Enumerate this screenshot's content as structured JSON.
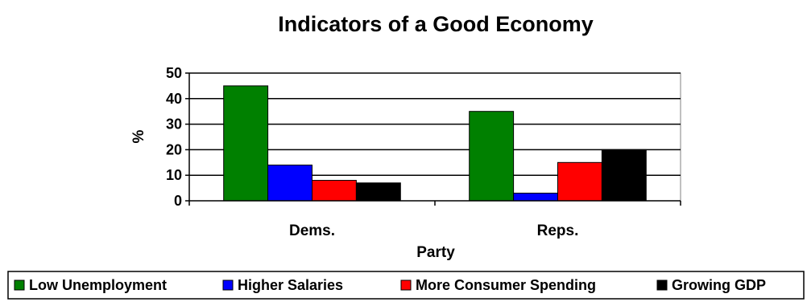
{
  "chart_data": {
    "type": "bar",
    "title": "Indicators of a Good Economy",
    "xlabel": "Party",
    "ylabel": "%",
    "categories": [
      "Dems.",
      "Reps."
    ],
    "ylim": [
      0,
      50
    ],
    "yticks": [
      0,
      10,
      20,
      30,
      40,
      50
    ],
    "grid": true,
    "legend_position": "bottom",
    "series": [
      {
        "name": "Low Unemployment",
        "color": "#008000",
        "values": [
          45,
          35
        ]
      },
      {
        "name": "Higher Salaries",
        "color": "#0000ff",
        "values": [
          14,
          3
        ]
      },
      {
        "name": "More Consumer Spending",
        "color": "#ff0000",
        "values": [
          8,
          15
        ]
      },
      {
        "name": "Growing GDP",
        "color": "#000000",
        "values": [
          7,
          20
        ]
      }
    ]
  }
}
